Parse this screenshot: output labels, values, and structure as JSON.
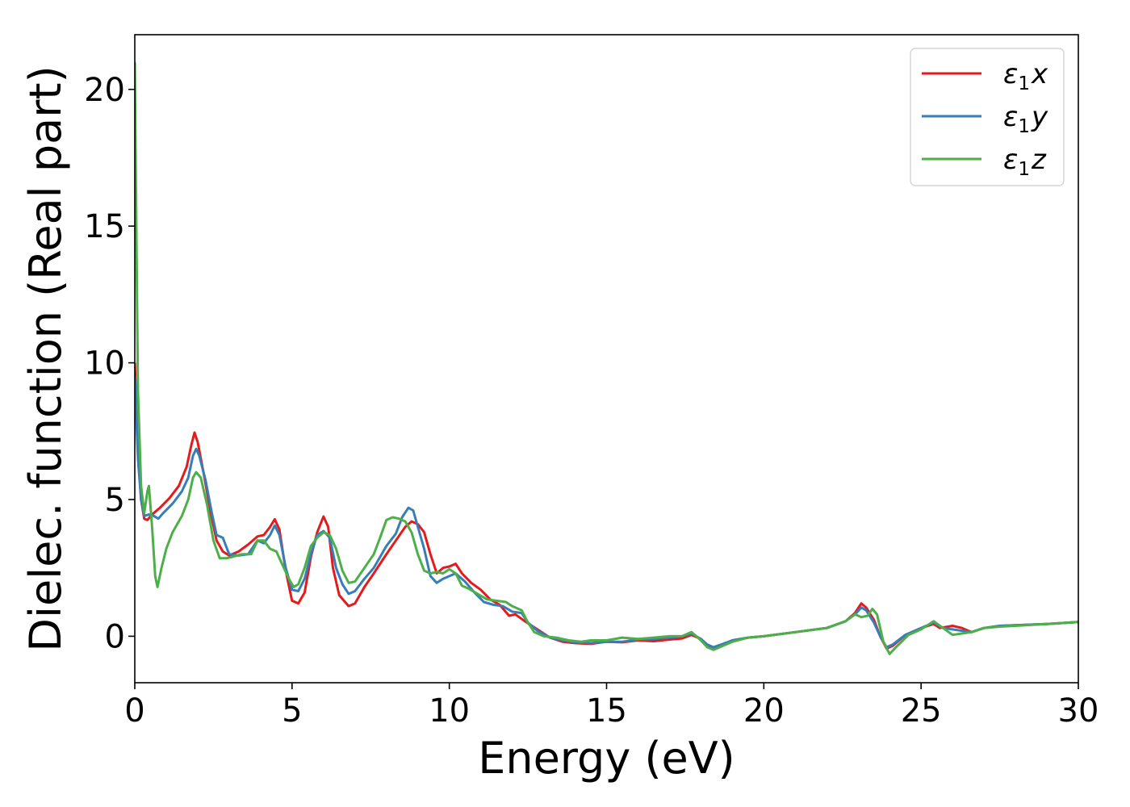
{
  "chart_data": {
    "type": "line",
    "xlabel": "Energy (eV)",
    "ylabel": "Dielec. function (Real part)",
    "xlim": [
      0,
      30
    ],
    "ylim": [
      -1.7,
      22
    ],
    "xticks": [
      0,
      5,
      10,
      15,
      20,
      25,
      30
    ],
    "yticks": [
      0,
      5,
      10,
      15,
      20
    ],
    "grid": false,
    "legend_position": "top-right",
    "series": [
      {
        "name": "ε1x",
        "symbol": "ε",
        "subscript": "1",
        "axis": "x",
        "color": "#e41a1c",
        "points": [
          [
            0,
            10.0
          ],
          [
            0.1,
            6.8
          ],
          [
            0.2,
            5.0
          ],
          [
            0.3,
            4.3
          ],
          [
            0.4,
            4.25
          ],
          [
            0.55,
            4.45
          ],
          [
            0.8,
            4.7
          ],
          [
            1.1,
            5.05
          ],
          [
            1.4,
            5.5
          ],
          [
            1.65,
            6.2
          ],
          [
            1.8,
            7.0
          ],
          [
            1.9,
            7.45
          ],
          [
            2.0,
            7.1
          ],
          [
            2.2,
            5.9
          ],
          [
            2.4,
            4.6
          ],
          [
            2.6,
            3.5
          ],
          [
            2.8,
            3.1
          ],
          [
            3.0,
            2.95
          ],
          [
            3.3,
            3.1
          ],
          [
            3.6,
            3.35
          ],
          [
            3.9,
            3.65
          ],
          [
            4.1,
            3.7
          ],
          [
            4.3,
            4.0
          ],
          [
            4.45,
            4.28
          ],
          [
            4.6,
            3.9
          ],
          [
            4.8,
            2.4
          ],
          [
            5.0,
            1.3
          ],
          [
            5.2,
            1.2
          ],
          [
            5.4,
            1.6
          ],
          [
            5.6,
            2.9
          ],
          [
            5.8,
            3.8
          ],
          [
            6.0,
            4.38
          ],
          [
            6.15,
            4.0
          ],
          [
            6.3,
            2.5
          ],
          [
            6.5,
            1.5
          ],
          [
            6.8,
            1.1
          ],
          [
            7.0,
            1.2
          ],
          [
            7.3,
            1.8
          ],
          [
            7.6,
            2.3
          ],
          [
            8.0,
            3.0
          ],
          [
            8.3,
            3.5
          ],
          [
            8.6,
            4.0
          ],
          [
            8.8,
            4.2
          ],
          [
            9.0,
            4.1
          ],
          [
            9.2,
            3.8
          ],
          [
            9.4,
            3.0
          ],
          [
            9.6,
            2.3
          ],
          [
            9.8,
            2.5
          ],
          [
            10.0,
            2.55
          ],
          [
            10.2,
            2.65
          ],
          [
            10.4,
            2.3
          ],
          [
            10.7,
            1.95
          ],
          [
            11.0,
            1.7
          ],
          [
            11.3,
            1.35
          ],
          [
            11.6,
            1.15
          ],
          [
            11.9,
            0.75
          ],
          [
            12.1,
            0.8
          ],
          [
            12.4,
            0.55
          ],
          [
            12.8,
            0.25
          ],
          [
            13.2,
            -0.05
          ],
          [
            13.6,
            -0.2
          ],
          [
            14.0,
            -0.25
          ],
          [
            14.5,
            -0.28
          ],
          [
            15.0,
            -0.2
          ],
          [
            15.5,
            -0.22
          ],
          [
            16.0,
            -0.15
          ],
          [
            16.5,
            -0.18
          ],
          [
            17.0,
            -0.12
          ],
          [
            17.4,
            -0.08
          ],
          [
            17.7,
            0.05
          ],
          [
            18.0,
            -0.1
          ],
          [
            18.2,
            -0.35
          ],
          [
            18.4,
            -0.45
          ],
          [
            18.7,
            -0.3
          ],
          [
            19.0,
            -0.15
          ],
          [
            19.5,
            -0.05
          ],
          [
            20.0,
            0.0
          ],
          [
            21.0,
            0.15
          ],
          [
            22.0,
            0.3
          ],
          [
            22.6,
            0.55
          ],
          [
            22.9,
            0.85
          ],
          [
            23.1,
            1.2
          ],
          [
            23.25,
            1.05
          ],
          [
            23.5,
            0.6
          ],
          [
            23.7,
            0.0
          ],
          [
            23.9,
            -0.45
          ],
          [
            24.1,
            -0.35
          ],
          [
            24.5,
            0.05
          ],
          [
            25.0,
            0.3
          ],
          [
            25.4,
            0.45
          ],
          [
            25.6,
            0.3
          ],
          [
            26.0,
            0.38
          ],
          [
            26.3,
            0.3
          ],
          [
            26.6,
            0.15
          ],
          [
            27.0,
            0.3
          ],
          [
            27.5,
            0.38
          ],
          [
            28.0,
            0.4
          ],
          [
            29.0,
            0.45
          ],
          [
            30.0,
            0.52
          ]
        ]
      },
      {
        "name": "ε1y",
        "symbol": "ε",
        "subscript": "1",
        "axis": "y",
        "color": "#377eb8",
        "points": [
          [
            0,
            9.5
          ],
          [
            0.1,
            6.5
          ],
          [
            0.2,
            5.0
          ],
          [
            0.3,
            4.4
          ],
          [
            0.45,
            4.45
          ],
          [
            0.6,
            4.4
          ],
          [
            0.75,
            4.3
          ],
          [
            0.9,
            4.5
          ],
          [
            1.2,
            4.85
          ],
          [
            1.5,
            5.3
          ],
          [
            1.7,
            5.8
          ],
          [
            1.85,
            6.6
          ],
          [
            1.95,
            6.85
          ],
          [
            2.05,
            6.6
          ],
          [
            2.25,
            5.7
          ],
          [
            2.45,
            4.5
          ],
          [
            2.6,
            3.7
          ],
          [
            2.8,
            3.6
          ],
          [
            3.0,
            3.0
          ],
          [
            3.3,
            2.95
          ],
          [
            3.6,
            3.0
          ],
          [
            3.9,
            3.5
          ],
          [
            4.1,
            3.4
          ],
          [
            4.3,
            3.7
          ],
          [
            4.45,
            4.05
          ],
          [
            4.6,
            3.7
          ],
          [
            4.8,
            2.5
          ],
          [
            5.0,
            1.7
          ],
          [
            5.2,
            1.65
          ],
          [
            5.4,
            2.1
          ],
          [
            5.6,
            3.0
          ],
          [
            5.8,
            3.7
          ],
          [
            6.0,
            3.85
          ],
          [
            6.2,
            3.6
          ],
          [
            6.4,
            2.5
          ],
          [
            6.6,
            1.9
          ],
          [
            6.8,
            1.55
          ],
          [
            7.0,
            1.65
          ],
          [
            7.3,
            2.1
          ],
          [
            7.6,
            2.5
          ],
          [
            8.0,
            3.3
          ],
          [
            8.3,
            3.75
          ],
          [
            8.5,
            4.35
          ],
          [
            8.7,
            4.7
          ],
          [
            8.85,
            4.6
          ],
          [
            9.0,
            4.0
          ],
          [
            9.2,
            3.2
          ],
          [
            9.4,
            2.2
          ],
          [
            9.6,
            1.95
          ],
          [
            9.8,
            2.1
          ],
          [
            10.0,
            2.2
          ],
          [
            10.2,
            2.3
          ],
          [
            10.5,
            2.0
          ],
          [
            10.8,
            1.6
          ],
          [
            11.1,
            1.25
          ],
          [
            11.4,
            1.15
          ],
          [
            11.7,
            1.1
          ],
          [
            12.0,
            0.9
          ],
          [
            12.3,
            0.85
          ],
          [
            12.5,
            0.5
          ],
          [
            12.8,
            0.2
          ],
          [
            13.2,
            -0.05
          ],
          [
            13.6,
            -0.15
          ],
          [
            14.0,
            -0.22
          ],
          [
            14.5,
            -0.25
          ],
          [
            15.0,
            -0.2
          ],
          [
            15.5,
            -0.2
          ],
          [
            16.0,
            -0.12
          ],
          [
            16.5,
            -0.1
          ],
          [
            17.0,
            -0.05
          ],
          [
            17.4,
            0.0
          ],
          [
            17.7,
            0.1
          ],
          [
            18.0,
            -0.1
          ],
          [
            18.2,
            -0.3
          ],
          [
            18.4,
            -0.4
          ],
          [
            18.7,
            -0.28
          ],
          [
            19.0,
            -0.15
          ],
          [
            19.5,
            -0.05
          ],
          [
            20.0,
            0.0
          ],
          [
            21.0,
            0.15
          ],
          [
            22.0,
            0.3
          ],
          [
            22.6,
            0.55
          ],
          [
            22.9,
            0.8
          ],
          [
            23.1,
            1.05
          ],
          [
            23.25,
            0.95
          ],
          [
            23.5,
            0.5
          ],
          [
            23.7,
            0.0
          ],
          [
            23.9,
            -0.4
          ],
          [
            24.1,
            -0.3
          ],
          [
            24.5,
            0.05
          ],
          [
            25.0,
            0.3
          ],
          [
            25.4,
            0.5
          ],
          [
            25.7,
            0.3
          ],
          [
            26.0,
            0.25
          ],
          [
            26.3,
            0.2
          ],
          [
            26.6,
            0.15
          ],
          [
            27.0,
            0.3
          ],
          [
            27.5,
            0.38
          ],
          [
            28.0,
            0.4
          ],
          [
            29.0,
            0.45
          ],
          [
            30.0,
            0.52
          ]
        ]
      },
      {
        "name": "ε1z",
        "symbol": "ε",
        "subscript": "1",
        "axis": "z",
        "color": "#4daf4a",
        "points": [
          [
            0,
            21.0
          ],
          [
            0.05,
            15.0
          ],
          [
            0.1,
            9.0
          ],
          [
            0.2,
            5.5
          ],
          [
            0.3,
            4.5
          ],
          [
            0.4,
            5.3
          ],
          [
            0.45,
            5.5
          ],
          [
            0.55,
            4.0
          ],
          [
            0.65,
            2.2
          ],
          [
            0.72,
            1.8
          ],
          [
            0.85,
            2.5
          ],
          [
            1.0,
            3.2
          ],
          [
            1.2,
            3.8
          ],
          [
            1.5,
            4.4
          ],
          [
            1.7,
            5.0
          ],
          [
            1.85,
            5.8
          ],
          [
            1.95,
            6.0
          ],
          [
            2.1,
            5.8
          ],
          [
            2.3,
            4.8
          ],
          [
            2.5,
            3.5
          ],
          [
            2.7,
            2.85
          ],
          [
            2.9,
            2.85
          ],
          [
            3.1,
            2.9
          ],
          [
            3.4,
            3.0
          ],
          [
            3.7,
            3.0
          ],
          [
            3.9,
            3.5
          ],
          [
            4.1,
            3.5
          ],
          [
            4.3,
            3.2
          ],
          [
            4.5,
            3.1
          ],
          [
            4.7,
            2.6
          ],
          [
            4.9,
            2.1
          ],
          [
            5.05,
            1.8
          ],
          [
            5.2,
            1.9
          ],
          [
            5.4,
            2.5
          ],
          [
            5.6,
            3.3
          ],
          [
            5.8,
            3.6
          ],
          [
            6.0,
            3.8
          ],
          [
            6.2,
            3.7
          ],
          [
            6.4,
            3.2
          ],
          [
            6.6,
            2.4
          ],
          [
            6.8,
            1.95
          ],
          [
            7.0,
            2.0
          ],
          [
            7.3,
            2.5
          ],
          [
            7.6,
            3.0
          ],
          [
            7.8,
            3.6
          ],
          [
            8.0,
            4.25
          ],
          [
            8.2,
            4.35
          ],
          [
            8.4,
            4.3
          ],
          [
            8.6,
            4.2
          ],
          [
            8.8,
            3.8
          ],
          [
            9.0,
            3.0
          ],
          [
            9.2,
            2.4
          ],
          [
            9.4,
            2.3
          ],
          [
            9.6,
            2.35
          ],
          [
            9.8,
            2.3
          ],
          [
            10.0,
            2.45
          ],
          [
            10.2,
            2.3
          ],
          [
            10.4,
            1.85
          ],
          [
            10.6,
            1.75
          ],
          [
            10.9,
            1.55
          ],
          [
            11.2,
            1.35
          ],
          [
            11.5,
            1.3
          ],
          [
            11.8,
            1.25
          ],
          [
            12.0,
            1.1
          ],
          [
            12.3,
            0.95
          ],
          [
            12.5,
            0.5
          ],
          [
            12.7,
            0.15
          ],
          [
            13.0,
            0.0
          ],
          [
            13.4,
            -0.05
          ],
          [
            13.8,
            -0.15
          ],
          [
            14.2,
            -0.2
          ],
          [
            14.5,
            -0.15
          ],
          [
            15.0,
            -0.15
          ],
          [
            15.5,
            -0.05
          ],
          [
            16.0,
            -0.1
          ],
          [
            16.5,
            -0.05
          ],
          [
            17.0,
            0.0
          ],
          [
            17.4,
            0.0
          ],
          [
            17.7,
            0.15
          ],
          [
            18.0,
            -0.15
          ],
          [
            18.2,
            -0.4
          ],
          [
            18.4,
            -0.5
          ],
          [
            18.7,
            -0.35
          ],
          [
            19.0,
            -0.2
          ],
          [
            19.5,
            -0.05
          ],
          [
            20.0,
            0.0
          ],
          [
            21.0,
            0.15
          ],
          [
            22.0,
            0.3
          ],
          [
            22.6,
            0.55
          ],
          [
            22.9,
            0.8
          ],
          [
            23.1,
            0.7
          ],
          [
            23.3,
            0.75
          ],
          [
            23.45,
            1.0
          ],
          [
            23.6,
            0.8
          ],
          [
            23.8,
            -0.2
          ],
          [
            24.0,
            -0.65
          ],
          [
            24.2,
            -0.4
          ],
          [
            24.6,
            0.05
          ],
          [
            25.0,
            0.25
          ],
          [
            25.4,
            0.55
          ],
          [
            25.7,
            0.3
          ],
          [
            26.0,
            0.05
          ],
          [
            26.3,
            0.1
          ],
          [
            26.6,
            0.15
          ],
          [
            27.0,
            0.3
          ],
          [
            27.5,
            0.35
          ],
          [
            28.0,
            0.38
          ],
          [
            29.0,
            0.45
          ],
          [
            30.0,
            0.52
          ]
        ]
      }
    ]
  }
}
